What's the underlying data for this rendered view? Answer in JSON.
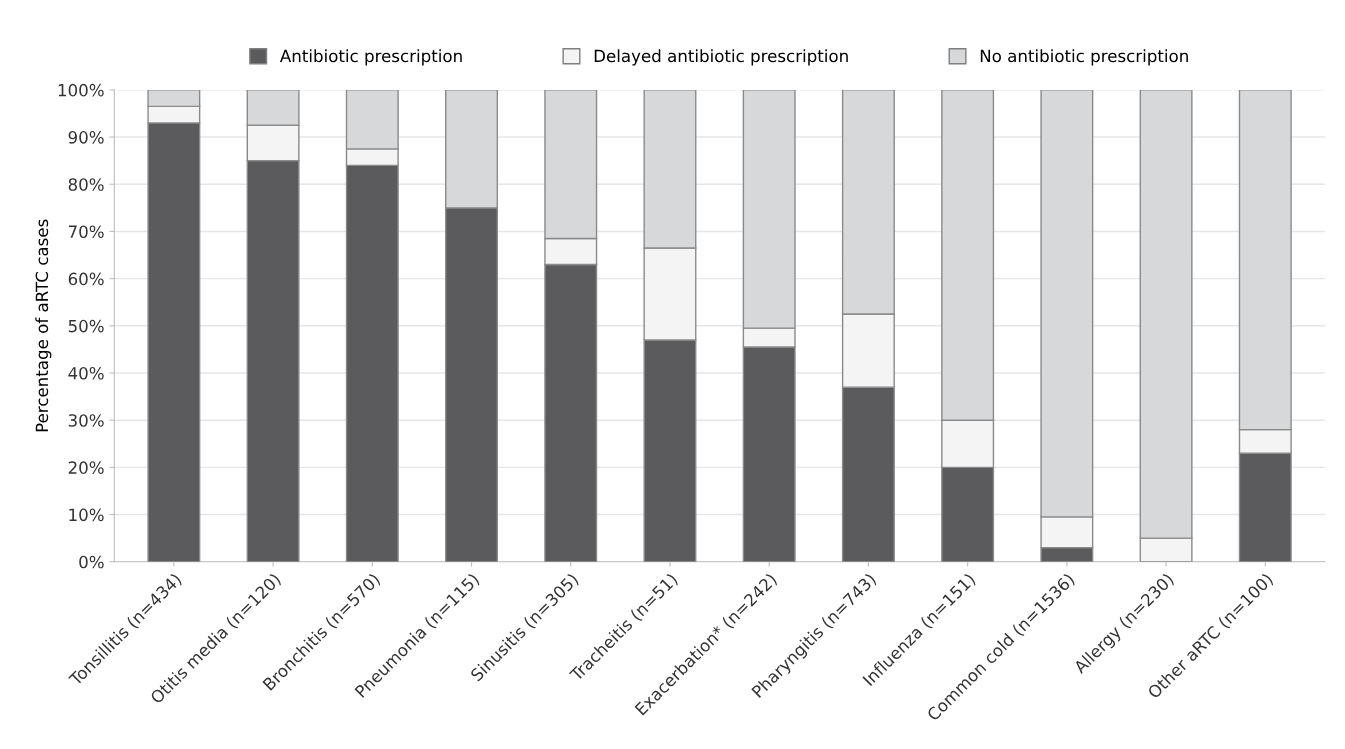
{
  "chart_data": {
    "type": "bar",
    "stacked": true,
    "ylabel": "Percentage of aRTC cases",
    "categories": [
      "Tonsillitis (n=434)",
      "Otitis media (n=120)",
      "Bronchitis (n=570)",
      "Pneumonia (n=115)",
      "Sinusitis (n=305)",
      "Tracheitis (n=51)",
      "Exacerbation* (n=242)",
      "Pharyngitis (n=743)",
      "Influenza (n=151)",
      "Common cold (n=1536)",
      "Allergy (n=230)",
      "Other aRTC (n=100)"
    ],
    "series": [
      {
        "name": "Antibiotic prescription",
        "color": "#5b5b5e",
        "values": [
          93,
          85,
          84,
          75,
          63,
          47,
          45.5,
          37,
          20,
          3,
          0,
          23
        ]
      },
      {
        "name": "Delayed antibiotic prescription",
        "color": "#f4f4f4",
        "values": [
          3.5,
          7.5,
          3.5,
          0,
          5.5,
          19.5,
          4,
          15.5,
          10,
          6.5,
          5,
          5
        ]
      },
      {
        "name": "No antibiotic prescription",
        "color": "#d7d8da",
        "values": [
          3.5,
          7.5,
          12.5,
          25,
          31.5,
          33.5,
          50.5,
          47.5,
          70,
          90.5,
          95,
          72
        ]
      }
    ],
    "ylim": [
      0,
      100
    ],
    "yticks": [
      {
        "value": 0,
        "label": "0%"
      },
      {
        "value": 10,
        "label": "10%"
      },
      {
        "value": 20,
        "label": "20%"
      },
      {
        "value": 30,
        "label": "30%"
      },
      {
        "value": 40,
        "label": "40%"
      },
      {
        "value": 50,
        "label": "50%"
      },
      {
        "value": 60,
        "label": "60%"
      },
      {
        "value": 70,
        "label": "70%"
      },
      {
        "value": 80,
        "label": "80%"
      },
      {
        "value": 90,
        "label": "90%"
      },
      {
        "value": 100,
        "label": "100%"
      }
    ],
    "grid": "y",
    "legend": "top"
  }
}
